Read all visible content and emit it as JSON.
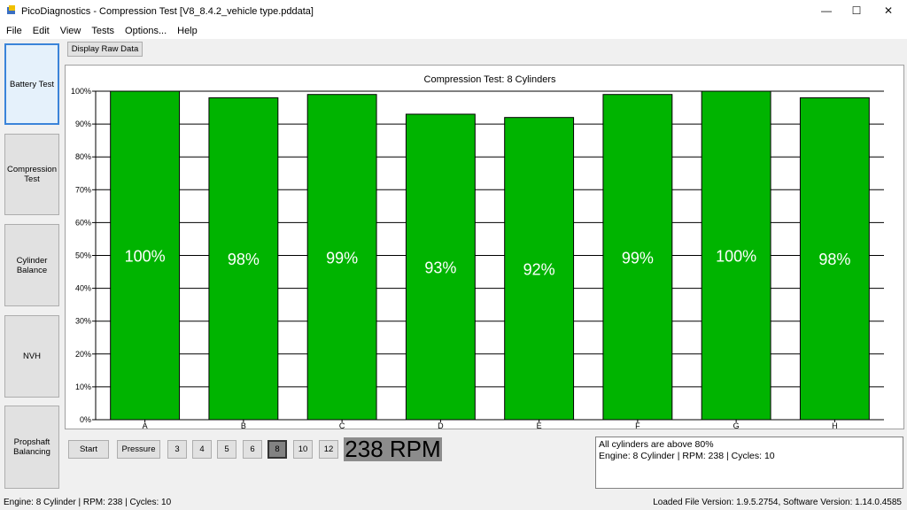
{
  "window": {
    "title": "PicoDiagnostics - Compression Test [V8_8.4.2_vehicle type.pddata]",
    "minimize": "—",
    "maximize": "☐",
    "close": "✕"
  },
  "menu": [
    "File",
    "Edit",
    "View",
    "Tests",
    "Options...",
    "Help"
  ],
  "sidebar": [
    {
      "label": "Battery Test",
      "active": true
    },
    {
      "label": "Compression\nTest",
      "active": false
    },
    {
      "label": "Cylinder\nBalance",
      "active": false
    },
    {
      "label": "NVH",
      "active": false
    },
    {
      "label": "Propshaft\nBalancing",
      "active": false
    }
  ],
  "toolbar": {
    "display_raw_data": "Display Raw Data"
  },
  "chart_data": {
    "type": "bar",
    "title": "Compression Test: 8 Cylinders",
    "categories": [
      "A",
      "B",
      "C",
      "D",
      "E",
      "F",
      "G",
      "H"
    ],
    "values": [
      100,
      98,
      99,
      93,
      92,
      99,
      100,
      98
    ],
    "value_labels": [
      "100%",
      "98%",
      "99%",
      "93%",
      "92%",
      "99%",
      "100%",
      "98%"
    ],
    "yticks": [
      "0%",
      "10%",
      "20%",
      "30%",
      "40%",
      "50%",
      "60%",
      "70%",
      "80%",
      "90%",
      "100%"
    ],
    "ylim": [
      0,
      100
    ],
    "bar_color": "#00b400",
    "grid": true
  },
  "controls": {
    "start": "Start",
    "pressure": "Pressure",
    "cylinders": [
      "3",
      "4",
      "5",
      "6",
      "8",
      "10",
      "12"
    ],
    "selected_cylinders": "8",
    "rpm": "238 RPM"
  },
  "info": {
    "line1": "All cylinders are above 80%",
    "line2": "Engine: 8 Cylinder | RPM: 238 | Cycles: 10"
  },
  "status": {
    "left": "Engine: 8 Cylinder | RPM: 238 | Cycles: 10",
    "right": "Loaded File Version: 1.9.5.2754,  Software Version: 1.14.0.4585"
  }
}
